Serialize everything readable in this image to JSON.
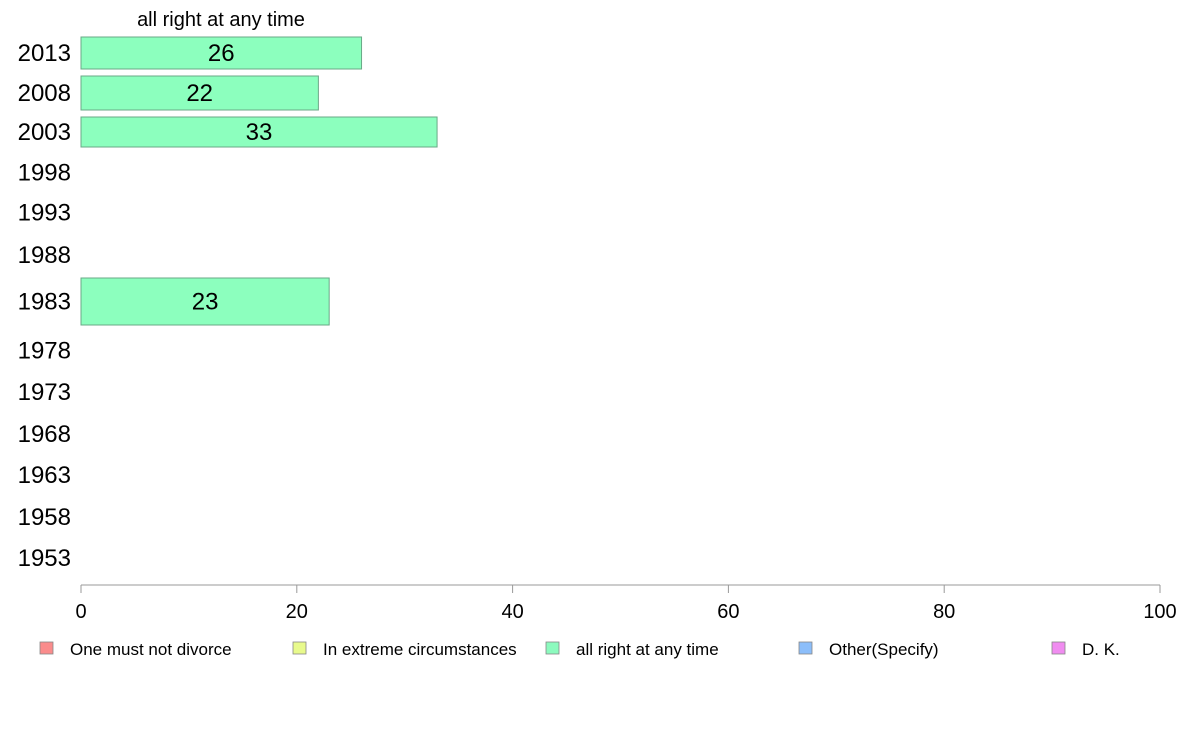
{
  "chart_data": {
    "type": "bar",
    "orientation": "horizontal",
    "panel_title": "all right at any time",
    "categories": [
      "2013",
      "2008",
      "2003",
      "1998",
      "1993",
      "1988",
      "1983",
      "1978",
      "1973",
      "1968",
      "1963",
      "1958",
      "1953"
    ],
    "series": [
      {
        "name": "all right at any time",
        "values": [
          26,
          22,
          33,
          null,
          null,
          null,
          23,
          null,
          null,
          null,
          null,
          null,
          null
        ]
      }
    ],
    "xlim": [
      0,
      100
    ],
    "x_ticks": [
      0,
      20,
      40,
      60,
      80,
      100
    ],
    "grid": false,
    "legend_position": "bottom"
  },
  "legend": [
    {
      "label": "One must not divorce",
      "color": "#fa8c8c"
    },
    {
      "label": "In extreme circumstances",
      "color": "#e8fa8c"
    },
    {
      "label": "all right at any time",
      "color": "#8cfabe"
    },
    {
      "label": "Other(Specify)",
      "color": "#8cbefa"
    },
    {
      "label": "D. K.",
      "color": "#f08cf0"
    }
  ],
  "colors": {
    "bar_fill": "#8cffbe",
    "bar_stroke": "#6aa887",
    "axis": "#999999"
  }
}
